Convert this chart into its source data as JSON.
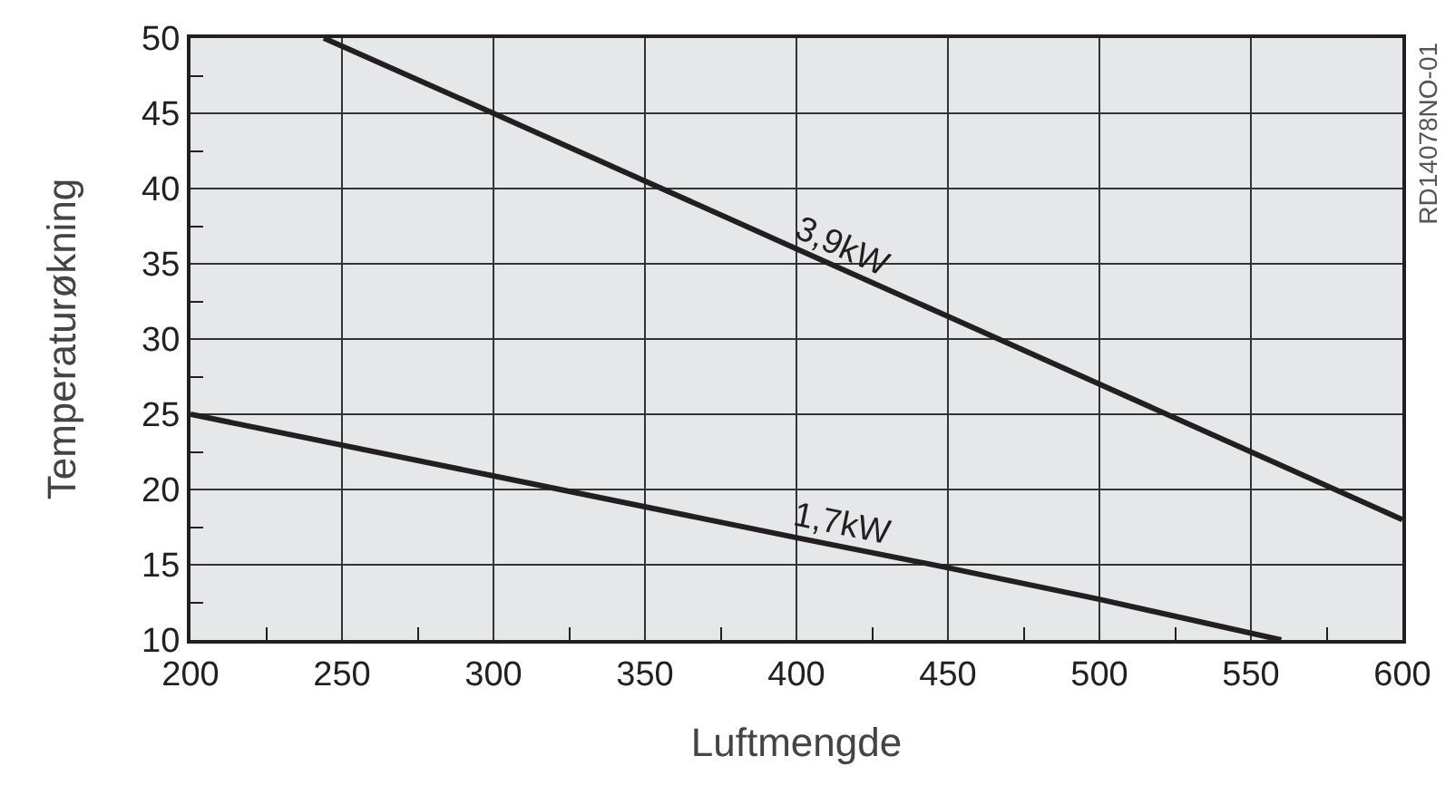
{
  "chart_data": {
    "type": "line",
    "xlabel": "Luftmengde",
    "ylabel": "Temperaturøkning",
    "annotations": [
      "RD14078NO-01"
    ],
    "series": [
      {
        "name": "3,9kW",
        "color": "#231f20",
        "x": [
          244,
          300,
          350,
          400,
          450,
          500,
          550,
          600
        ],
        "values": [
          50,
          45,
          40.5,
          36,
          31.5,
          27,
          22.5,
          18
        ]
      },
      {
        "name": "1,7kW",
        "color": "#231f20",
        "x": [
          200,
          300,
          400,
          450,
          500,
          560
        ],
        "values": [
          25,
          20.9,
          16.8,
          14.8,
          12.7,
          10
        ]
      }
    ],
    "xlim": [
      200,
      600
    ],
    "xticks": [
      200,
      250,
      300,
      350,
      400,
      450,
      500,
      550,
      600
    ],
    "ylim": [
      10,
      50
    ],
    "yticks": [
      10,
      15,
      20,
      25,
      30,
      35,
      40,
      45,
      50
    ],
    "grid": true,
    "legend": false,
    "marker": "none",
    "line_style": "solid"
  }
}
